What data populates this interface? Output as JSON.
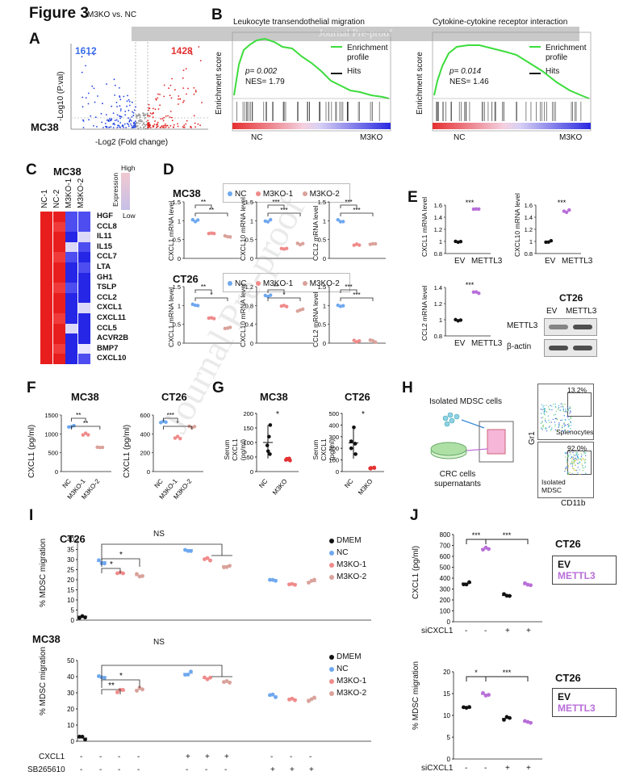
{
  "figure_title": "Figure 3",
  "banner": "Journal Pre-proof",
  "watermark": "Journal Pre-proof",
  "panels": {
    "A": {
      "label": "A",
      "title": "M3KO vs. NC",
      "down_count": "1612",
      "up_count": "1428",
      "cell": "MC38",
      "ylabel": "-Log10 (P.val)",
      "xlabel": "-Log2 (Fold change)"
    },
    "B": {
      "label": "B",
      "left": {
        "title": "Leukocyte transendothelial migration",
        "p": "p= 0.002",
        "nes": "NES= 1.79",
        "ylabel": "Enrichment score",
        "legend_profile": "Enrichment profile",
        "legend_hits": "Hits",
        "x_left": "NC",
        "x_right": "M3KO"
      },
      "right": {
        "title": "Cytokine-cytokine receptor interaction",
        "p": "p= 0.014",
        "nes": "NES= 1.46",
        "ylabel": "Enrichment score",
        "legend_profile": "Enrichment profile",
        "legend_hits": "Hits",
        "x_left": "NC",
        "x_right": "M3KO"
      }
    },
    "C": {
      "label": "C",
      "cell": "MC38",
      "scale_high": "High",
      "scale_low": "Low",
      "scale_title": "Expression",
      "columns": [
        "NC-1",
        "NC-2",
        "M3KO-1",
        "M3KO-2"
      ],
      "genes": [
        "HGF",
        "CCL8",
        "IL11",
        "IL15",
        "CCL7",
        "LTA",
        "GH1",
        "TSLP",
        "CCL2",
        "CXCL1",
        "CXCL11",
        "CCL5",
        "ACVR2B",
        "BMP7",
        "CXCL10"
      ]
    },
    "D": {
      "label": "D",
      "legend": [
        "NC",
        "M3KO-1",
        "M3KO-2"
      ],
      "mc38": "MC38",
      "ct26": "CT26",
      "ylabels": [
        "CXCL1 mRNA level",
        "CXCL10 mRNA level",
        "CCL2 mRNA level"
      ],
      "stars_mc38": [
        [
          "**",
          "**"
        ],
        [
          "***",
          "***"
        ],
        [
          "***",
          "***"
        ]
      ],
      "stars_ct26": [
        [
          "**",
          "*"
        ],
        [
          "**",
          "*"
        ],
        [
          "***",
          "***"
        ]
      ]
    },
    "E": {
      "label": "E",
      "ylabels": [
        "CXCL1 mRNA level",
        "CXCL10 mRNA level",
        "CCL2 mRNA level"
      ],
      "x": [
        "EV",
        "METTL3"
      ],
      "stars": "***",
      "cell": "CT26",
      "blot_labels": [
        "METTL3",
        "β-actin"
      ]
    },
    "F": {
      "label": "F",
      "cells": [
        "MC38",
        "CT26"
      ],
      "ylabel": "CXCL1 (pg/ml)",
      "x": [
        "NC",
        "M3KO-1",
        "M3KO-2"
      ],
      "stars_mc38": [
        "**",
        "**"
      ],
      "stars_ct26": [
        "***",
        "*"
      ]
    },
    "G": {
      "label": "G",
      "cells": [
        "MC38",
        "CT26"
      ],
      "ylabel": "Serum CXCL1 (pg/ml)",
      "x": [
        "NC",
        "M3KO"
      ],
      "stars": "*"
    },
    "H": {
      "label": "H",
      "mdsc": "Isolated MDSC cells",
      "crc": "CRC cells supernatants",
      "gr1": "Gr1",
      "cd11b": "CD11b",
      "flow_top_pct": "13.2%",
      "flow_top_label": "Splenocytes",
      "flow_bot_pct": "92.0%",
      "flow_bot_label": "Isolated MDSC"
    },
    "I": {
      "label": "I",
      "ct26": "CT26",
      "mc38": "MC38",
      "ylabel": "% MDSC migration",
      "ns": "NS",
      "legend": [
        "DMEM",
        "NC",
        "M3KO-1",
        "M3KO-2"
      ],
      "row_cxcl1": "CXCL1",
      "row_sb": "SB265610",
      "signs": [
        "-",
        "-",
        "-",
        "-",
        "+",
        "+",
        "+",
        "-",
        "-",
        "-"
      ],
      "signs_sb": [
        "-",
        "-",
        "-",
        "-",
        "-",
        "-",
        "-",
        "+",
        "+",
        "+"
      ]
    },
    "J": {
      "label": "J",
      "cell": "CT26",
      "legend": [
        "EV",
        "METTL3"
      ],
      "ylabel_top": "CXCL1 (pg/ml)",
      "ylabel_bot": "% MDSC migration",
      "row": "siCXCL1",
      "signs": [
        "-",
        "-",
        "+",
        "+"
      ],
      "stars_top": [
        "***",
        "***"
      ],
      "stars_bot": [
        "*",
        "***"
      ]
    }
  },
  "colors": {
    "nc": "#6fa8ef",
    "m3ko1": "#f08a8a",
    "m3ko2": "#d9a29a",
    "dmem": "#111111",
    "ev": "#111111",
    "mettl3": "#b86ed8",
    "gsea_line": "#3ddc3d",
    "up": "#e02020",
    "down": "#2040e0"
  },
  "chart_data": [
    {
      "type": "scatter",
      "panel": "F-MC38",
      "title": "MC38",
      "ylabel": "CXCL1 (pg/ml)",
      "categories": [
        "NC",
        "M3KO-1",
        "M3KO-2"
      ],
      "values": [
        1200,
        1000,
        620
      ],
      "ylim": [
        0,
        1500
      ]
    },
    {
      "type": "scatter",
      "panel": "F-CT26",
      "title": "CT26",
      "ylabel": "CXCL1 (pg/ml)",
      "categories": [
        "NC",
        "M3KO-1",
        "M3KO-2"
      ],
      "values": [
        520,
        360,
        470
      ],
      "ylim": [
        0,
        600
      ]
    },
    {
      "type": "scatter",
      "panel": "J-top",
      "ylabel": "CXCL1 (pg/ml)",
      "categories": [
        "EV",
        "METTL3",
        "EV",
        "METTL3"
      ],
      "values": [
        355,
        670,
        240,
        340
      ],
      "ylim": [
        0,
        800
      ]
    },
    {
      "type": "scatter",
      "panel": "J-bot",
      "ylabel": "% MDSC migration",
      "categories": [
        "EV",
        "METTL3",
        "EV",
        "METTL3"
      ],
      "values": [
        11.7,
        14.8,
        9.3,
        8.5
      ],
      "ylim": [
        0,
        20
      ]
    }
  ]
}
